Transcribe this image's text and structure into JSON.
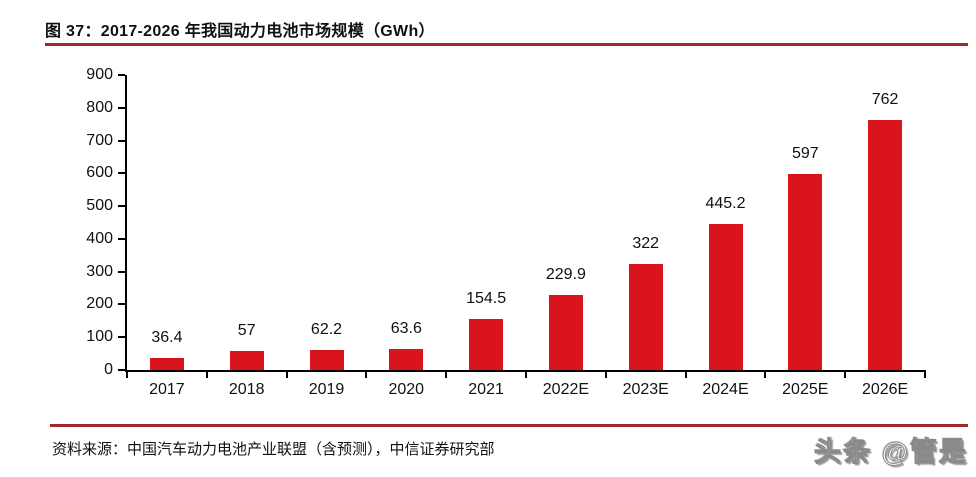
{
  "header": {
    "title": "图 37：2017-2026 年我国动力电池市场规模（GWh）"
  },
  "chart_data": {
    "type": "bar",
    "title": "2017-2026 年我国动力电池市场规模（GWh）",
    "categories": [
      "2017",
      "2018",
      "2019",
      "2020",
      "2021",
      "2022E",
      "2023E",
      "2024E",
      "2025E",
      "2026E"
    ],
    "values": [
      36.4,
      57,
      62.2,
      63.6,
      154.5,
      229.9,
      322,
      445.2,
      597,
      762
    ],
    "value_labels": [
      "36.4",
      "57",
      "62.2",
      "63.6",
      "154.5",
      "229.9",
      "322",
      "445.2",
      "597",
      "762"
    ],
    "xlabel": "",
    "ylabel": "",
    "ylim": [
      0,
      900
    ],
    "yticks": [
      0,
      100,
      200,
      300,
      400,
      500,
      600,
      700,
      800,
      900
    ],
    "grid": false,
    "legend": false,
    "bar_color": "#d9141c"
  },
  "footer": {
    "source": "资料来源：中国汽车动力电池产业联盟（含预测），中信证券研究部",
    "watermark": "头条 @管是"
  },
  "colors": {
    "bar": "#d9141c",
    "rule": "#a3282c",
    "axis": "#000000",
    "text": "#111111",
    "background": "#ffffff"
  }
}
